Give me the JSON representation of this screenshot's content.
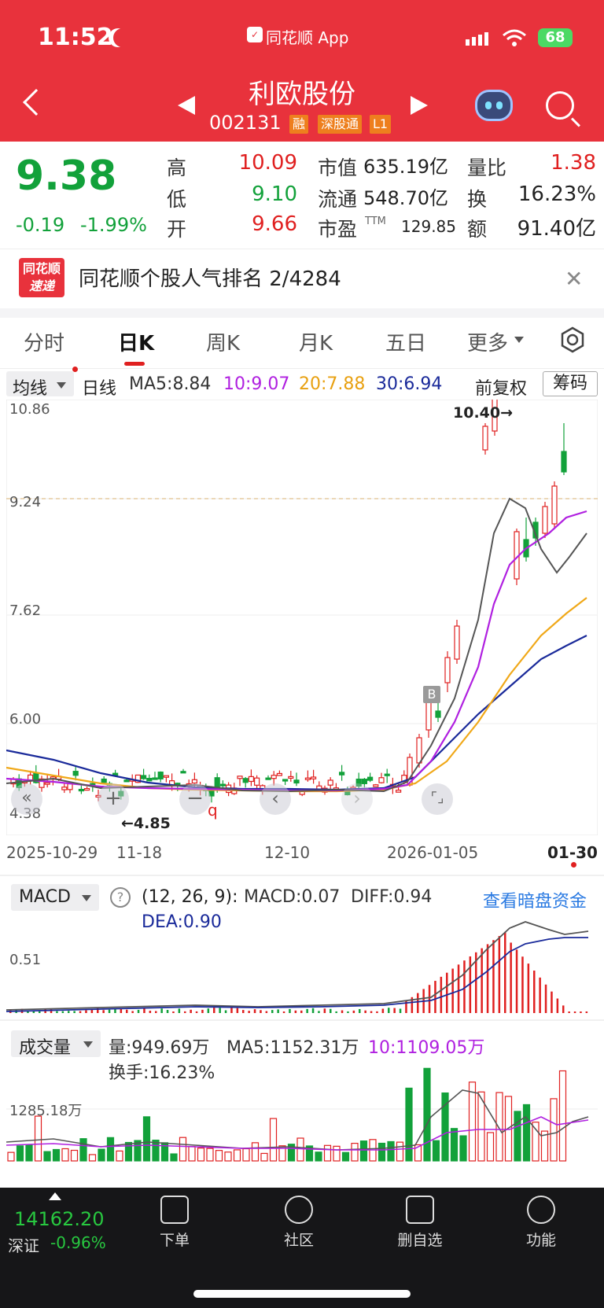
{
  "status_bar": {
    "time": "11:52",
    "app": "同花顺 App",
    "battery": "68"
  },
  "header": {
    "stock_name": "利欧股份",
    "stock_code": "002131",
    "tags": [
      "融",
      "深股通",
      "L1"
    ]
  },
  "quote": {
    "price": "9.38",
    "change": "-0.19",
    "change_pct": "-1.99%",
    "high_label": "高",
    "high": "10.09",
    "low_label": "低",
    "low": "9.10",
    "open_label": "开",
    "open": "9.66",
    "mktcap_label": "市值",
    "mktcap": "635.19亿",
    "float_label": "流通",
    "float": "548.70亿",
    "pe_label": "市盈",
    "pe_sup": "TTM",
    "pe": "129.85",
    "vol_ratio_label": "量比",
    "vol_ratio": "1.38",
    "turnover_label": "换",
    "turnover": "16.23%",
    "amount_label": "额",
    "amount": "91.40亿"
  },
  "banner": {
    "logo_line1": "同花顺",
    "logo_line2": "速递",
    "text": "同花顺个股人气排名 2/4284"
  },
  "tabs": [
    {
      "label": "分时"
    },
    {
      "label": "日K"
    },
    {
      "label": "周K"
    },
    {
      "label": "月K"
    },
    {
      "label": "五日"
    },
    {
      "label": "更多"
    }
  ],
  "ma_bar": {
    "selector": "均线",
    "period": "日线",
    "ma5": "MA5:8.84",
    "ma10": "10:9.07",
    "ma20": "20:7.88",
    "ma30": "30:6.94",
    "adjust": "前复权",
    "chips": "筹码"
  },
  "kline": {
    "y_labels": [
      "10.86",
      "9.24",
      "7.62",
      "6.00",
      "4.38"
    ],
    "max_label": "10.40→",
    "min_label": "←4.85",
    "dates": [
      "2025-10-29",
      "11-18",
      "12-10",
      "2026-01-05",
      "01-30"
    ],
    "marker_b": "B",
    "marker_q": "q"
  },
  "macd": {
    "label": "MACD",
    "params": "(12, 26, 9):",
    "macd": "MACD:0.07",
    "diff": "DIFF:0.94",
    "dea": "DEA:0.90",
    "link": "查看暗盘资金",
    "y_label": "0.51"
  },
  "volume": {
    "label": "成交量",
    "vol": "量:949.69万",
    "ma5": "MA5:1152.31万",
    "ma10": "10:1109.05万",
    "turnover": "换手:16.23%",
    "y_label": "1285.18万"
  },
  "bottom_bar": {
    "index_value": "14162.20",
    "index_name": "深证",
    "index_change": "-0.96%",
    "nav": [
      {
        "label": "下单"
      },
      {
        "label": "社区"
      },
      {
        "label": "删自选"
      },
      {
        "label": "功能"
      }
    ]
  },
  "colors": {
    "up": "#e02020",
    "down": "#12a13a",
    "header": "#e8323c"
  }
}
